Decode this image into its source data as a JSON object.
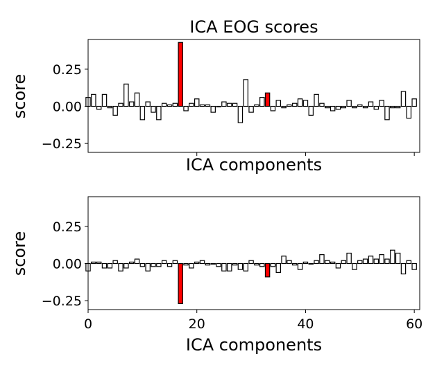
{
  "figure": {
    "title": "ICA EOG scores"
  },
  "chart_data": [
    {
      "type": "bar",
      "title": "ICA EOG scores",
      "xlabel": "ICA components",
      "ylabel": "score",
      "xlim": [
        0,
        61
      ],
      "ylim": [
        -0.31,
        0.45
      ],
      "yticks": [
        -0.25,
        0.0,
        0.25
      ],
      "ytick_labels": [
        "−0.25",
        "0.00",
        "0.25"
      ],
      "xticks": [
        20,
        40,
        60
      ],
      "xtick_labels": [],
      "grid": false,
      "colors": {
        "normal": "#ffffff",
        "highlight": "#ff0000",
        "edge": "#000000"
      },
      "highlight": [
        17,
        33
      ],
      "x": [
        0,
        1,
        2,
        3,
        4,
        5,
        6,
        7,
        8,
        9,
        10,
        11,
        12,
        13,
        14,
        15,
        16,
        17,
        18,
        19,
        20,
        21,
        22,
        23,
        24,
        25,
        26,
        27,
        28,
        29,
        30,
        31,
        32,
        33,
        34,
        35,
        36,
        37,
        38,
        39,
        40,
        41,
        42,
        43,
        44,
        45,
        46,
        47,
        48,
        49,
        50,
        51,
        52,
        53,
        54,
        55,
        56,
        57,
        58,
        59,
        60
      ],
      "values": [
        0.06,
        0.08,
        -0.02,
        0.08,
        -0.01,
        -0.06,
        0.02,
        0.15,
        0.03,
        0.09,
        -0.09,
        0.03,
        -0.04,
        -0.09,
        0.02,
        0.01,
        0.02,
        0.43,
        -0.03,
        0.02,
        0.05,
        0.01,
        0.01,
        -0.04,
        0.0,
        0.03,
        0.02,
        0.02,
        -0.11,
        0.18,
        -0.04,
        0.01,
        0.06,
        0.09,
        -0.03,
        0.04,
        -0.01,
        0.01,
        0.02,
        0.05,
        0.04,
        -0.06,
        0.08,
        0.02,
        -0.01,
        -0.03,
        -0.02,
        -0.01,
        0.04,
        -0.01,
        0.01,
        -0.01,
        0.03,
        -0.02,
        0.04,
        -0.09,
        -0.01,
        -0.01,
        0.1,
        -0.08,
        0.05
      ]
    },
    {
      "type": "bar",
      "title": "",
      "xlabel": "ICA components",
      "ylabel": "score",
      "xlim": [
        0,
        61
      ],
      "ylim": [
        -0.31,
        0.45
      ],
      "yticks": [
        -0.25,
        0.0,
        0.25
      ],
      "ytick_labels": [
        "−0.25",
        "0.00",
        "0.25"
      ],
      "xticks": [
        0,
        20,
        40,
        60
      ],
      "xtick_labels": [
        "0",
        "20",
        "40",
        "60"
      ],
      "grid": false,
      "colors": {
        "normal": "#ffffff",
        "highlight": "#ff0000",
        "edge": "#000000"
      },
      "highlight": [
        17,
        33
      ],
      "x": [
        0,
        1,
        2,
        3,
        4,
        5,
        6,
        7,
        8,
        9,
        10,
        11,
        12,
        13,
        14,
        15,
        16,
        17,
        18,
        19,
        20,
        21,
        22,
        23,
        24,
        25,
        26,
        27,
        28,
        29,
        30,
        31,
        32,
        33,
        34,
        35,
        36,
        37,
        38,
        39,
        40,
        41,
        42,
        43,
        44,
        45,
        46,
        47,
        48,
        49,
        50,
        51,
        52,
        53,
        54,
        55,
        56,
        57,
        58,
        59,
        60
      ],
      "values": [
        -0.05,
        0.01,
        0.01,
        -0.03,
        -0.03,
        0.02,
        -0.05,
        -0.03,
        0.01,
        0.03,
        -0.02,
        -0.05,
        -0.02,
        -0.02,
        0.02,
        -0.02,
        0.02,
        -0.27,
        -0.01,
        -0.03,
        0.01,
        0.02,
        -0.01,
        0.0,
        -0.02,
        -0.05,
        -0.05,
        -0.01,
        -0.04,
        -0.05,
        0.02,
        -0.01,
        -0.02,
        -0.09,
        -0.02,
        -0.06,
        0.05,
        0.02,
        -0.01,
        -0.04,
        0.01,
        0.0,
        0.02,
        0.06,
        0.02,
        0.01,
        -0.03,
        0.02,
        0.07,
        -0.04,
        0.02,
        0.03,
        0.05,
        0.03,
        0.06,
        0.03,
        0.09,
        0.07,
        -0.07,
        0.02,
        -0.04
      ]
    }
  ]
}
